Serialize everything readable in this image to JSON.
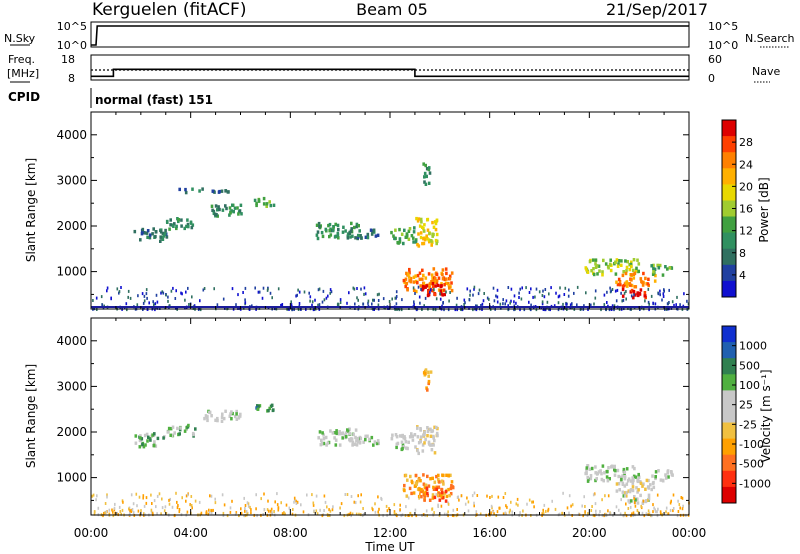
{
  "header": {
    "station": "Kerguelen (fitACF)",
    "beam": "Beam 05",
    "date": "21/Sep/2017"
  },
  "strip_labels": {
    "nsky": "N.Sky",
    "nsky_ticks": [
      "10^5",
      "10^0"
    ],
    "nsearch": "N.Search",
    "nsearch_ticks": [
      "10^5",
      "10^0"
    ],
    "freq_line1": "Freq.",
    "freq_line2": "[MHz]",
    "freq_ticks": [
      "18",
      "8"
    ],
    "nave": "Nave",
    "nave_ticks": [
      "60",
      "0"
    ],
    "cpid": "CPID",
    "mode": "normal (fast) 151"
  },
  "chart_data": [
    {
      "type": "line",
      "name": "N.Sky / N.Search strip",
      "x_range_hours": [
        0,
        24
      ],
      "y_scale": "log",
      "series": [
        {
          "name": "N.Sky",
          "x": [
            0,
            0.2,
            0.25,
            24
          ],
          "y": [
            1,
            1,
            100000,
            100000
          ]
        }
      ]
    },
    {
      "type": "line",
      "name": "Freq / Nave strip",
      "x_range_hours": [
        0,
        24
      ],
      "series": [
        {
          "name": "Freq. [MHz]",
          "x": [
            0,
            0.9,
            0.9,
            13,
            13,
            24
          ],
          "y": [
            9.5,
            9.5,
            12.3,
            12.3,
            9.5,
            9.5
          ]
        },
        {
          "name": "Nave",
          "x": [
            0,
            24
          ],
          "y": [
            24,
            24
          ]
        }
      ],
      "freq_range": [
        8,
        18
      ],
      "nave_range": [
        0,
        60
      ]
    },
    {
      "type": "heatmap",
      "name": "Power",
      "xlabel": "Time UT",
      "ylabel": "Slant Range [km]",
      "x_ticks": [
        "00:00",
        "04:00",
        "08:00",
        "12:00",
        "16:00",
        "20:00",
        "00:00"
      ],
      "x_range_hours": [
        0,
        24
      ],
      "y_ticks": [
        1000,
        2000,
        3000,
        4000
      ],
      "y_range_km": [
        180,
        4500
      ],
      "colorbar": {
        "label": "Power [dB]",
        "ticks": [
          "28",
          "24",
          "20",
          "16",
          "12",
          "8",
          "4"
        ],
        "colors": [
          "#dd0000",
          "#ff4000",
          "#ff8000",
          "#ffb000",
          "#e8d800",
          "#a0cc30",
          "#40a040",
          "#309060",
          "#307060",
          "#2040a0",
          "#1010d0"
        ]
      },
      "patches": [
        {
          "hours": [
            1.7,
            3.0
          ],
          "km": [
            1700,
            2000
          ],
          "level": 8
        },
        {
          "hours": [
            3.0,
            4.2
          ],
          "km": [
            1950,
            2200
          ],
          "level": 7
        },
        {
          "hours": [
            4.5,
            6.0
          ],
          "km": [
            2250,
            2500
          ],
          "level": 7
        },
        {
          "hours": [
            6.5,
            7.3
          ],
          "km": [
            2450,
            2650
          ],
          "level": 6
        },
        {
          "hours": [
            3.5,
            5.5
          ],
          "km": [
            2750,
            2850
          ],
          "level": 8
        },
        {
          "hours": [
            9.0,
            10.8
          ],
          "km": [
            1750,
            2100
          ],
          "level": 7
        },
        {
          "hours": [
            10.3,
            11.5
          ],
          "km": [
            1750,
            1950
          ],
          "level": 8
        },
        {
          "hours": [
            12.0,
            13.0
          ],
          "km": [
            1650,
            2000
          ],
          "level": 6
        },
        {
          "hours": [
            13.0,
            13.9
          ],
          "km": [
            1550,
            2200
          ],
          "level": 4
        },
        {
          "hours": [
            13.3,
            13.6
          ],
          "km": [
            2900,
            3400
          ],
          "level": 7
        },
        {
          "hours": [
            12.5,
            14.5
          ],
          "km": [
            600,
            1100
          ],
          "level": 2
        },
        {
          "hours": [
            13.2,
            14.2
          ],
          "km": [
            500,
            850
          ],
          "level": 0
        },
        {
          "hours": [
            19.8,
            22.0
          ],
          "km": [
            950,
            1300
          ],
          "level": 5
        },
        {
          "hours": [
            21.0,
            22.6
          ],
          "km": [
            700,
            1000
          ],
          "level": 2
        },
        {
          "hours": [
            21.3,
            22.4
          ],
          "km": [
            450,
            650
          ],
          "level": 0
        },
        {
          "hours": [
            22.4,
            23.3
          ],
          "km": [
            950,
            1200
          ],
          "level": 6
        }
      ],
      "near_range_clutter": {
        "km": [
          200,
          700
        ],
        "level": 9
      }
    },
    {
      "type": "heatmap",
      "name": "Velocity",
      "xlabel": "Time UT",
      "ylabel": "Slant Range [km]",
      "x_ticks": [
        "00:00",
        "04:00",
        "08:00",
        "12:00",
        "16:00",
        "20:00",
        "00:00"
      ],
      "x_range_hours": [
        0,
        24
      ],
      "y_ticks": [
        1000,
        2000,
        3000,
        4000
      ],
      "y_range_km": [
        180,
        4500
      ],
      "colorbar": {
        "label": "Velocity [m s⁻¹]",
        "ticks": [
          "1000",
          "500",
          "100",
          "25",
          "-25",
          "-100",
          "-500",
          "-1000"
        ],
        "colors": [
          "#1030d0",
          "#2060b0",
          "#308050",
          "#50b040",
          "#c8c8c8",
          "#c8c8c8",
          "#f0c040",
          "#ffa000",
          "#ff7020",
          "#ff3010",
          "#dd0000"
        ]
      },
      "patches": [
        {
          "hours": [
            1.7,
            3.0
          ],
          "km": [
            1700,
            2000
          ],
          "level": 3
        },
        {
          "hours": [
            3.0,
            4.2
          ],
          "km": [
            1950,
            2200
          ],
          "level": 3
        },
        {
          "hours": [
            4.5,
            6.0
          ],
          "km": [
            2250,
            2500
          ],
          "level": 4
        },
        {
          "hours": [
            6.5,
            7.3
          ],
          "km": [
            2450,
            2650
          ],
          "level": 2
        },
        {
          "hours": [
            9.0,
            10.8
          ],
          "km": [
            1750,
            2100
          ],
          "level": 4
        },
        {
          "hours": [
            10.3,
            11.5
          ],
          "km": [
            1750,
            1950
          ],
          "level": 4
        },
        {
          "hours": [
            12.0,
            13.0
          ],
          "km": [
            1650,
            2000
          ],
          "level": 4
        },
        {
          "hours": [
            13.0,
            13.9
          ],
          "km": [
            1550,
            2200
          ],
          "level": 5
        },
        {
          "hours": [
            13.3,
            13.6
          ],
          "km": [
            2900,
            3400
          ],
          "level": 7
        },
        {
          "hours": [
            12.5,
            14.5
          ],
          "km": [
            600,
            1100
          ],
          "level": 7
        },
        {
          "hours": [
            13.2,
            14.2
          ],
          "km": [
            500,
            850
          ],
          "level": 8
        },
        {
          "hours": [
            19.8,
            22.0
          ],
          "km": [
            950,
            1300
          ],
          "level": 4
        },
        {
          "hours": [
            21.0,
            22.6
          ],
          "km": [
            700,
            1000
          ],
          "level": 5
        },
        {
          "hours": [
            21.3,
            22.4
          ],
          "km": [
            450,
            650
          ],
          "level": 4
        },
        {
          "hours": [
            22.4,
            23.3
          ],
          "km": [
            950,
            1200
          ],
          "level": 4
        }
      ],
      "near_range_clutter": {
        "km": [
          200,
          700
        ],
        "level": 6
      }
    }
  ]
}
